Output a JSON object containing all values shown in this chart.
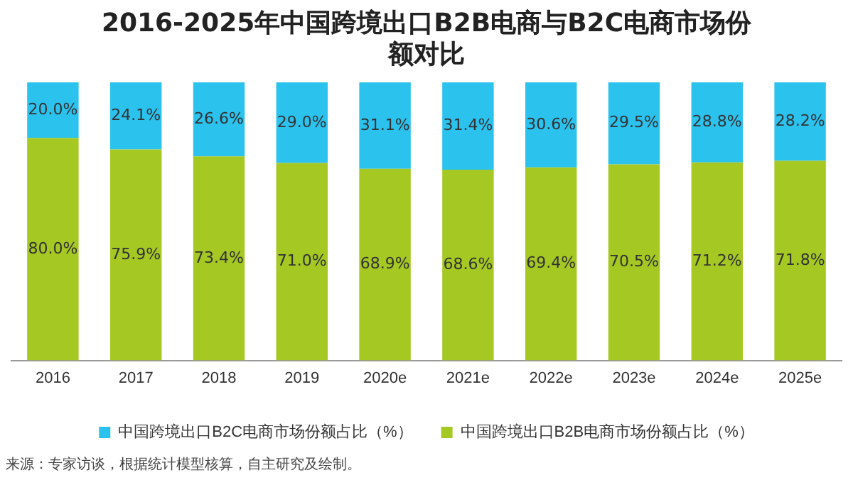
{
  "chart_data": {
    "type": "bar",
    "title": "2016-2025年中国跨境出口B2B电商与B2C电商市场份额对比",
    "categories": [
      "2016",
      "2017",
      "2018",
      "2019",
      "2020e",
      "2021e",
      "2022e",
      "2023e",
      "2024e",
      "2025e"
    ],
    "stacked": true,
    "legend": "bottom",
    "series": [
      {
        "name": "中国跨境出口B2B电商市场份额占比（%）",
        "color": "#a5c823",
        "values": [
          80.0,
          75.9,
          73.4,
          71.0,
          68.9,
          68.6,
          69.4,
          70.5,
          71.2,
          71.8
        ],
        "value_labels": [
          "80.0%",
          "75.9%",
          "73.4%",
          "71.0%",
          "68.9%",
          "68.6%",
          "69.4%",
          "70.5%",
          "71.2%",
          "71.8%"
        ]
      },
      {
        "name": "中国跨境出口B2C电商市场份额占比（%）",
        "color": "#2bc2ee",
        "values": [
          20.0,
          24.1,
          26.6,
          29.0,
          31.1,
          31.4,
          30.6,
          29.5,
          28.8,
          28.2
        ],
        "value_labels": [
          "20.0%",
          "24.1%",
          "26.6%",
          "29.0%",
          "31.1%",
          "31.4%",
          "30.6%",
          "29.5%",
          "28.8%",
          "28.2%"
        ]
      }
    ],
    "annotations": [
      "来源：专家访谈，根据统计模型核算，自主研究及绘制。"
    ]
  }
}
